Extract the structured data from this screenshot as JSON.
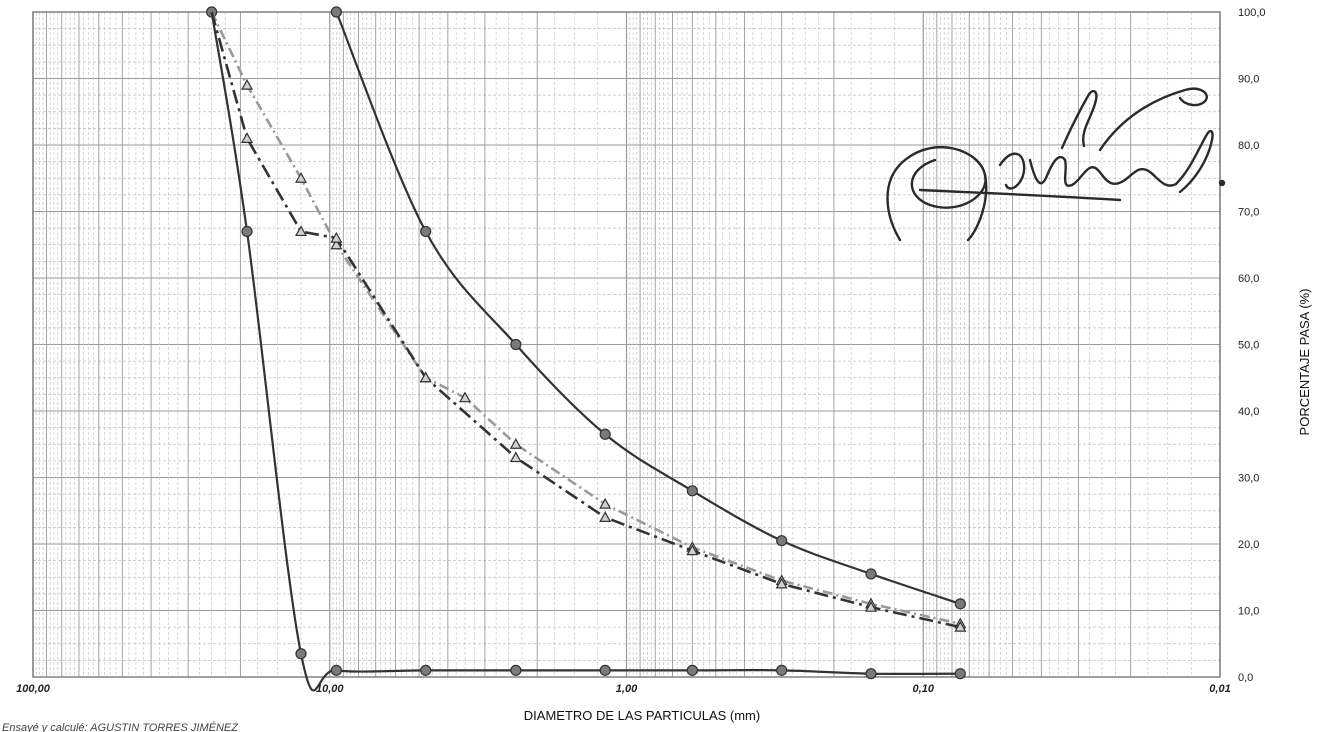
{
  "chart_data": {
    "type": "line",
    "title": "",
    "xlabel": "DIAMETRO DE LAS PARTICULAS (mm)",
    "ylabel": "PORCENTAJE PASA (%)",
    "x_scale": "log",
    "x_reversed": true,
    "xlim": [
      100,
      0.01
    ],
    "ylim": [
      0,
      100
    ],
    "grid": true,
    "x_tick_labels": [
      "100,00",
      "10,00",
      "1,00",
      "0,10",
      "0,01"
    ],
    "x_tick_values": [
      100,
      10,
      1,
      0.1,
      0.01
    ],
    "y_tick_labels": [
      "0,0",
      "10,0",
      "20,0",
      "30,0",
      "40,0",
      "50,0",
      "60,0",
      "70,0",
      "80,0",
      "90,0",
      "100,0"
    ],
    "y_tick_values": [
      0,
      10,
      20,
      30,
      40,
      50,
      60,
      70,
      80,
      90,
      100
    ],
    "series": [
      {
        "color": "#333333",
        "style": "solid",
        "marker": "circle",
        "x": [
          9.5,
          4.75,
          2.36,
          1.18,
          0.6,
          0.3,
          0.15,
          0.075
        ],
        "y": [
          100,
          67,
          50,
          36.5,
          28,
          20.5,
          15.5,
          11
        ]
      },
      {
        "color": "#333333",
        "style": "solid",
        "marker": "circle",
        "x": [
          25,
          19,
          12.5,
          9.5,
          4.75,
          2.36,
          1.18,
          0.6,
          0.3,
          0.15,
          0.075
        ],
        "y": [
          100,
          67,
          3.5,
          1,
          1,
          1,
          1,
          1,
          1,
          0.5,
          0.5
        ]
      },
      {
        "color": "#999999",
        "style": "dashed",
        "marker": "triangle",
        "x": [
          25,
          19,
          12.5,
          9.5,
          4.75,
          3.5,
          2.36,
          1.18,
          0.6,
          0.3,
          0.15,
          0.075
        ],
        "y": [
          100,
          89,
          75,
          65,
          45,
          42,
          35,
          26,
          19.5,
          14.5,
          11,
          8
        ]
      },
      {
        "color": "#333333",
        "style": "dashdot",
        "marker": "triangle",
        "x": [
          25,
          19,
          12.5,
          9.5,
          4.75,
          2.36,
          1.18,
          0.6,
          0.3,
          0.15,
          0.075
        ],
        "y": [
          100,
          81,
          67,
          66,
          45,
          33,
          24,
          19,
          14,
          10.5,
          7.5
        ]
      }
    ],
    "footer_text": "Ensayé y calculé: AGUSTIN TORRES JIMÉNEZ"
  },
  "colors": {
    "grid": "#bfbfbf",
    "frame": "#777777"
  }
}
